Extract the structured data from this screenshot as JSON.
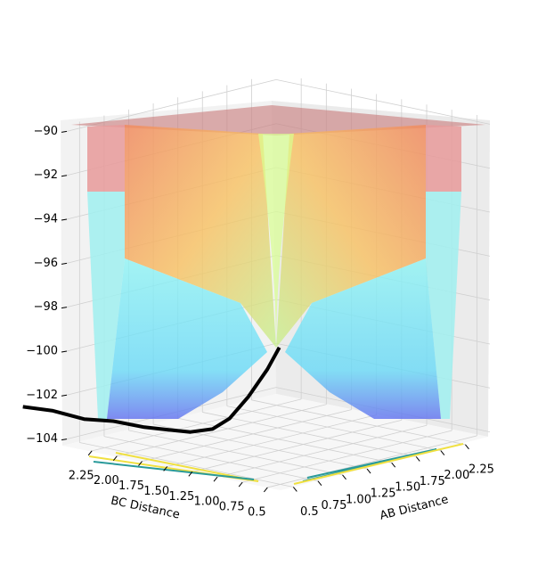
{
  "chart_data": {
    "type": "surface3d",
    "xlabel": "AB Distance",
    "ylabel": "BC Distance",
    "xlim": [
      0.37,
      2.5
    ],
    "ylim": [
      0.37,
      2.5
    ],
    "zlim": [
      -104.3,
      -89.7
    ],
    "xticks": [
      0.5,
      0.75,
      {
        "value": 1.0,
        "label": "1.00"
      },
      1.25,
      {
        "value": 1.5,
        "label": "1.50"
      },
      1.75,
      {
        "value": 2.0,
        "label": "2.00"
      },
      2.25
    ],
    "yticks": [
      0.5,
      0.75,
      {
        "value": 1.0,
        "label": "1.00"
      },
      1.25,
      {
        "value": 1.5,
        "label": "1.50"
      },
      1.75,
      {
        "value": 2.0,
        "label": "2.00"
      },
      2.25
    ],
    "zticks": [
      {
        "value": -90,
        "label": "−90"
      },
      {
        "value": -92,
        "label": "−92"
      },
      {
        "value": -94,
        "label": "−94"
      },
      {
        "value": -96,
        "label": "−96"
      },
      {
        "value": -98,
        "label": "−98"
      },
      {
        "value": -100,
        "label": "−100"
      },
      {
        "value": -102,
        "label": "−102"
      },
      {
        "value": -104,
        "label": "−104"
      }
    ],
    "grid": true,
    "trajectory": {
      "color": "#000000",
      "x": [
        0.74,
        0.74,
        0.75,
        0.74,
        0.75,
        0.75,
        0.76,
        0.78,
        0.8,
        0.84,
        0.9,
        0.95
      ],
      "y": [
        3.3,
        3.0,
        2.7,
        2.4,
        2.1,
        1.88,
        1.65,
        1.45,
        1.3,
        1.15,
        1.02,
        0.95
      ],
      "z": [
        -103.7,
        -103.6,
        -103.7,
        -103.5,
        -103.5,
        -103.4,
        -103.3,
        -103.0,
        -102.4,
        -101.3,
        -100.0,
        -99.0
      ]
    }
  }
}
